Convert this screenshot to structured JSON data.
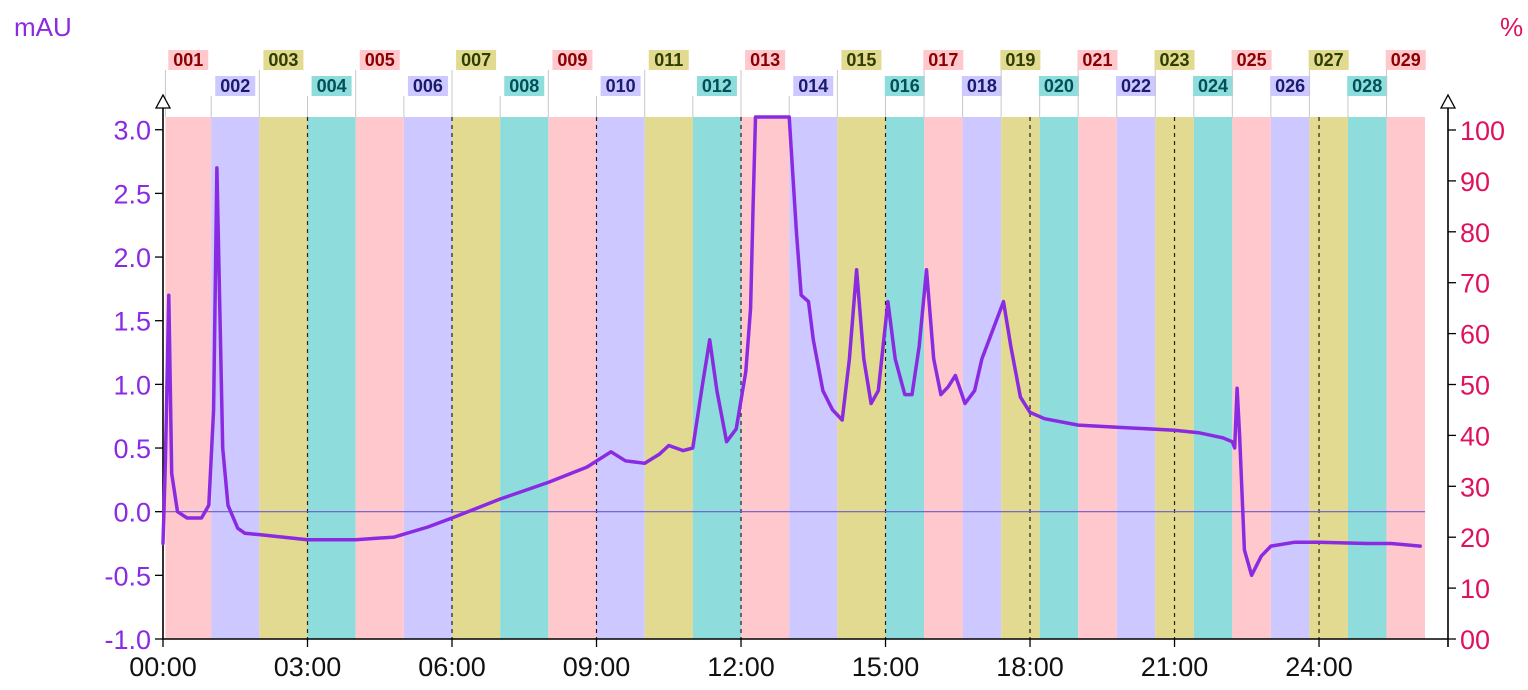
{
  "chart_data": {
    "type": "line",
    "title": "",
    "y_unit_left": "mAU",
    "y_unit_right": "%",
    "x_range": [
      0,
      26.2
    ],
    "ylim": [
      -1.0,
      3.1
    ],
    "y2lim": [
      0,
      100
    ],
    "x_ticks": [
      {
        "value": 0,
        "label": "00:00"
      },
      {
        "value": 3,
        "label": "03:00"
      },
      {
        "value": 6,
        "label": "06:00"
      },
      {
        "value": 9,
        "label": "09:00"
      },
      {
        "value": 12,
        "label": "12:00"
      },
      {
        "value": 15,
        "label": "15:00"
      },
      {
        "value": 18,
        "label": "18:00"
      },
      {
        "value": 21,
        "label": "21:00"
      },
      {
        "value": 24,
        "label": "24:00"
      }
    ],
    "y_ticks_left": [
      {
        "value": 3.0,
        "label": "3.0"
      },
      {
        "value": 2.5,
        "label": "2.5"
      },
      {
        "value": 2.0,
        "label": "2.0"
      },
      {
        "value": 1.5,
        "label": "1.5"
      },
      {
        "value": 1.0,
        "label": "1.0"
      },
      {
        "value": 0.5,
        "label": "0.5"
      },
      {
        "value": 0.0,
        "label": "0.0"
      },
      {
        "value": -0.5,
        "label": "-0.5"
      },
      {
        "value": -1.0,
        "label": "-1.0"
      }
    ],
    "y_ticks_right": [
      {
        "value": 100,
        "label": "100"
      },
      {
        "value": 90,
        "label": "90"
      },
      {
        "value": 80,
        "label": "80"
      },
      {
        "value": 70,
        "label": "70"
      },
      {
        "value": 60,
        "label": "60"
      },
      {
        "value": 50,
        "label": "50"
      },
      {
        "value": 40,
        "label": "40"
      },
      {
        "value": 30,
        "label": "30"
      },
      {
        "value": 20,
        "label": "20"
      },
      {
        "value": 10,
        "label": "10"
      },
      {
        "value": 0,
        "label": "00"
      }
    ],
    "vertical_gridlines": [
      3,
      6,
      9,
      12,
      15,
      18,
      21,
      24
    ],
    "grid": "dashed vertical lines at 3-minute intervals",
    "baseline": 0.0,
    "fraction_colors": [
      "#ffc8cc",
      "#cdc8ff",
      "#e2da90",
      "#8edcdc"
    ],
    "fraction_label_colors": [
      "#8b0000",
      "#1a1a6e",
      "#2e3d00",
      "#00505a"
    ],
    "fractions": [
      {
        "label": "001",
        "start": 0.05,
        "end": 1.0
      },
      {
        "label": "002",
        "start": 1.0,
        "end": 2.0
      },
      {
        "label": "003",
        "start": 2.0,
        "end": 3.0
      },
      {
        "label": "004",
        "start": 3.0,
        "end": 4.0
      },
      {
        "label": "005",
        "start": 4.0,
        "end": 5.0
      },
      {
        "label": "006",
        "start": 5.0,
        "end": 6.0
      },
      {
        "label": "007",
        "start": 6.0,
        "end": 7.0
      },
      {
        "label": "008",
        "start": 7.0,
        "end": 8.0
      },
      {
        "label": "009",
        "start": 8.0,
        "end": 9.0
      },
      {
        "label": "010",
        "start": 9.0,
        "end": 10.0
      },
      {
        "label": "011",
        "start": 10.0,
        "end": 11.0
      },
      {
        "label": "012",
        "start": 11.0,
        "end": 12.0
      },
      {
        "label": "013",
        "start": 12.0,
        "end": 13.0
      },
      {
        "label": "014",
        "start": 13.0,
        "end": 14.0
      },
      {
        "label": "015",
        "start": 14.0,
        "end": 15.0
      },
      {
        "label": "016",
        "start": 15.0,
        "end": 15.8
      },
      {
        "label": "017",
        "start": 15.8,
        "end": 16.6
      },
      {
        "label": "018",
        "start": 16.6,
        "end": 17.4
      },
      {
        "label": "019",
        "start": 17.4,
        "end": 18.2
      },
      {
        "label": "020",
        "start": 18.2,
        "end": 19.0
      },
      {
        "label": "021",
        "start": 19.0,
        "end": 19.8
      },
      {
        "label": "022",
        "start": 19.8,
        "end": 20.6
      },
      {
        "label": "023",
        "start": 20.6,
        "end": 21.4
      },
      {
        "label": "024",
        "start": 21.4,
        "end": 22.2
      },
      {
        "label": "025",
        "start": 22.2,
        "end": 23.0
      },
      {
        "label": "026",
        "start": 23.0,
        "end": 23.8
      },
      {
        "label": "027",
        "start": 23.8,
        "end": 24.6
      },
      {
        "label": "028",
        "start": 24.6,
        "end": 25.4
      },
      {
        "label": "029",
        "start": 25.4,
        "end": 26.2
      }
    ],
    "series": [
      {
        "color": "#8a2be2",
        "x": [
          0.0,
          0.05,
          0.12,
          0.18,
          0.3,
          0.5,
          0.8,
          0.95,
          1.05,
          1.12,
          1.18,
          1.24,
          1.35,
          1.55,
          1.7,
          2.0,
          3.0,
          4.0,
          4.8,
          5.5,
          6.0,
          7.0,
          8.0,
          8.8,
          9.3,
          9.6,
          10.0,
          10.3,
          10.5,
          10.8,
          11.0,
          11.2,
          11.35,
          11.5,
          11.7,
          11.9,
          12.1,
          12.2,
          12.25,
          12.3,
          12.35,
          13.0,
          13.05,
          13.15,
          13.25,
          13.4,
          13.5,
          13.7,
          13.9,
          14.1,
          14.25,
          14.4,
          14.55,
          14.7,
          14.85,
          15.05,
          15.2,
          15.4,
          15.55,
          15.7,
          15.85,
          16.0,
          16.15,
          16.3,
          16.45,
          16.65,
          16.85,
          17.0,
          17.2,
          17.45,
          17.6,
          17.8,
          18.0,
          18.3,
          19.0,
          20.0,
          21.0,
          21.5,
          22.0,
          22.2,
          22.25,
          22.3,
          22.35,
          22.45,
          22.6,
          22.8,
          23.0,
          23.5,
          24.0,
          25.0,
          25.5,
          26.1
        ],
        "values": [
          -0.25,
          0.4,
          1.7,
          0.3,
          0.0,
          -0.05,
          -0.05,
          0.05,
          0.8,
          2.7,
          1.6,
          0.5,
          0.05,
          -0.13,
          -0.17,
          -0.18,
          -0.22,
          -0.22,
          -0.2,
          -0.12,
          -0.05,
          0.1,
          0.23,
          0.35,
          0.47,
          0.4,
          0.38,
          0.45,
          0.52,
          0.48,
          0.5,
          1.0,
          1.35,
          0.95,
          0.55,
          0.65,
          1.1,
          1.6,
          2.4,
          3.1,
          3.1,
          3.1,
          2.8,
          2.2,
          1.7,
          1.65,
          1.35,
          0.95,
          0.8,
          0.72,
          1.2,
          1.9,
          1.2,
          0.85,
          0.95,
          1.65,
          1.2,
          0.92,
          0.92,
          1.3,
          1.9,
          1.2,
          0.92,
          0.98,
          1.07,
          0.85,
          0.95,
          1.2,
          1.4,
          1.65,
          1.3,
          0.9,
          0.78,
          0.73,
          0.68,
          0.66,
          0.64,
          0.62,
          0.58,
          0.55,
          0.5,
          0.97,
          0.6,
          -0.3,
          -0.5,
          -0.35,
          -0.27,
          -0.24,
          -0.24,
          -0.25,
          -0.25,
          -0.27
        ]
      }
    ]
  }
}
